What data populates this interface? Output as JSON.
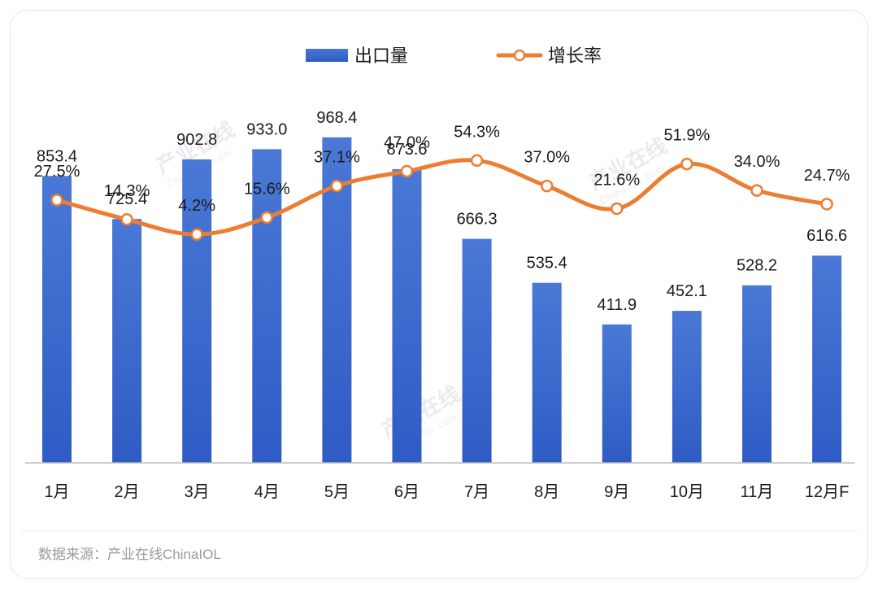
{
  "chart_data": {
    "type": "bar+line",
    "categories": [
      "1月",
      "2月",
      "3月",
      "4月",
      "5月",
      "6月",
      "7月",
      "8月",
      "9月",
      "10月",
      "11月",
      "12月F"
    ],
    "series": [
      {
        "name": "出口量",
        "type": "bar",
        "values": [
          853.4,
          725.4,
          902.8,
          933.0,
          968.4,
          873.6,
          666.3,
          535.4,
          411.9,
          452.1,
          528.2,
          616.6
        ],
        "labels": [
          "853.4",
          "725.4",
          "902.8",
          "933.0",
          "968.4",
          "873.6",
          "666.3",
          "535.4",
          "411.9",
          "452.1",
          "528.2",
          "616.6"
        ],
        "ylim": [
          0,
          1000
        ]
      },
      {
        "name": "增长率",
        "type": "line",
        "values": [
          27.5,
          14.3,
          4.2,
          15.6,
          37.1,
          47.0,
          54.3,
          37.0,
          21.6,
          51.9,
          34.0,
          24.7
        ],
        "labels": [
          "27.5%",
          "14.3%",
          "4.2%",
          "15.6%",
          "37.1%",
          "47.0%",
          "54.3%",
          "37.0%",
          "21.6%",
          "51.9%",
          "34.0%",
          "24.7%"
        ],
        "ylim": [
          0,
          60
        ]
      }
    ],
    "legend": [
      {
        "name": "出口量",
        "kind": "bar"
      },
      {
        "name": "增长率",
        "kind": "line"
      }
    ],
    "legend_position": "top-center",
    "title": "",
    "xlabel": "",
    "ylabel": "",
    "grid": false
  },
  "colors": {
    "bar_top": "#4a78d6",
    "bar_bottom": "#2f5cc4",
    "line": "#ed7d31",
    "marker_fill": "#ffffff",
    "axis": "#bfbfbf"
  },
  "source": "数据来源：产业在线ChinaIOL",
  "watermark": {
    "text": "产业在线",
    "sub": "ChinaIOL.com"
  }
}
